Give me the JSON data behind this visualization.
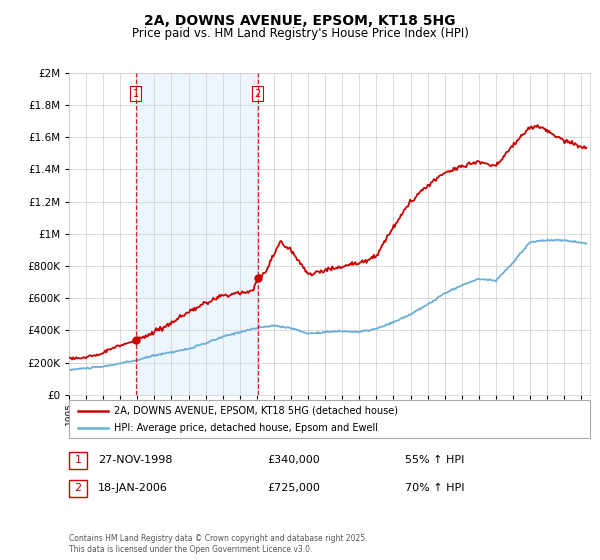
{
  "title": "2A, DOWNS AVENUE, EPSOM, KT18 5HG",
  "subtitle": "Price paid vs. HM Land Registry's House Price Index (HPI)",
  "legend_line1": "2A, DOWNS AVENUE, EPSOM, KT18 5HG (detached house)",
  "legend_line2": "HPI: Average price, detached house, Epsom and Ewell",
  "purchase1_date": "27-NOV-1998",
  "purchase1_price": 340000,
  "purchase1_label": "£340,000",
  "purchase1_pct": "55% ↑ HPI",
  "purchase2_date": "18-JAN-2006",
  "purchase2_price": 725000,
  "purchase2_label": "£725,000",
  "purchase2_pct": "70% ↑ HPI",
  "footer": "Contains HM Land Registry data © Crown copyright and database right 2025.\nThis data is licensed under the Open Government Licence v3.0.",
  "red_color": "#cc0000",
  "blue_color": "#6baed6",
  "vline_color": "#cc0000",
  "grid_color": "#cccccc",
  "shaded_color": "#ddeeff",
  "background_color": "#ffffff",
  "ylim": [
    0,
    2000000
  ],
  "xlim_start": 1995.0,
  "xlim_end": 2025.5,
  "p1_year": 1998.92,
  "p2_year": 2006.05
}
